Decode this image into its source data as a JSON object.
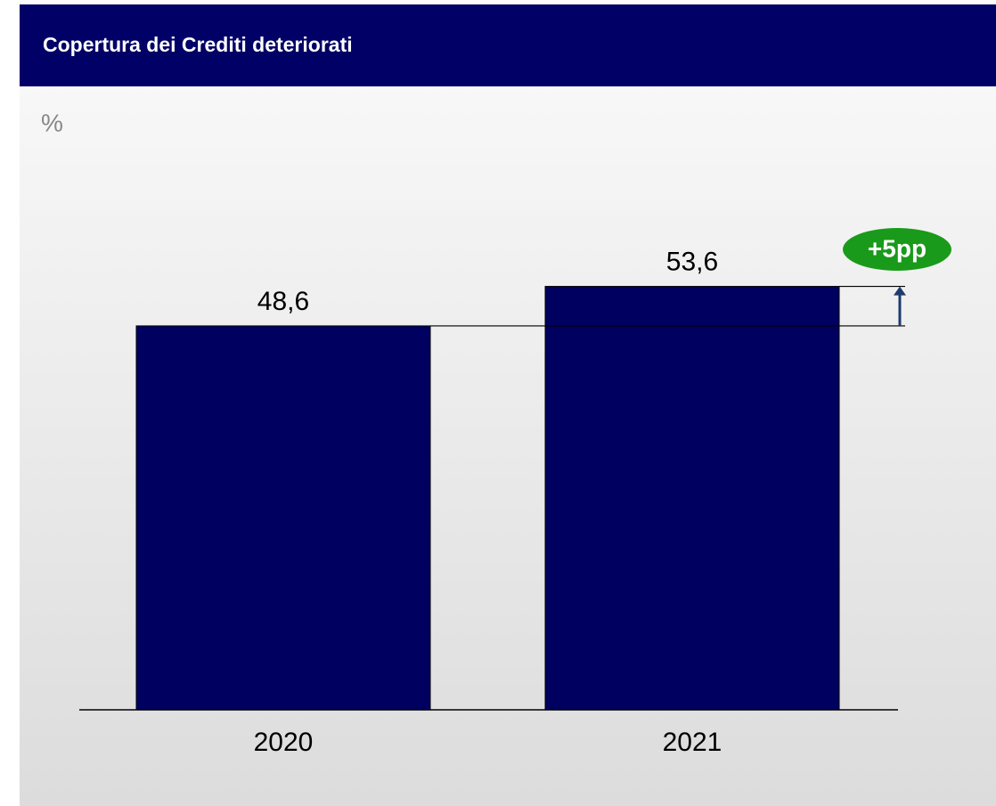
{
  "chart_data": {
    "type": "bar",
    "title": "Copertura dei Crediti deteriorati",
    "unit_label": "%",
    "categories": [
      "2020",
      "2021"
    ],
    "values": [
      48.6,
      53.6
    ],
    "value_labels": [
      "48,6",
      "53,6"
    ],
    "color": "#000060",
    "annotation": "+5pp",
    "annotation_color": "#1a9a1a"
  }
}
